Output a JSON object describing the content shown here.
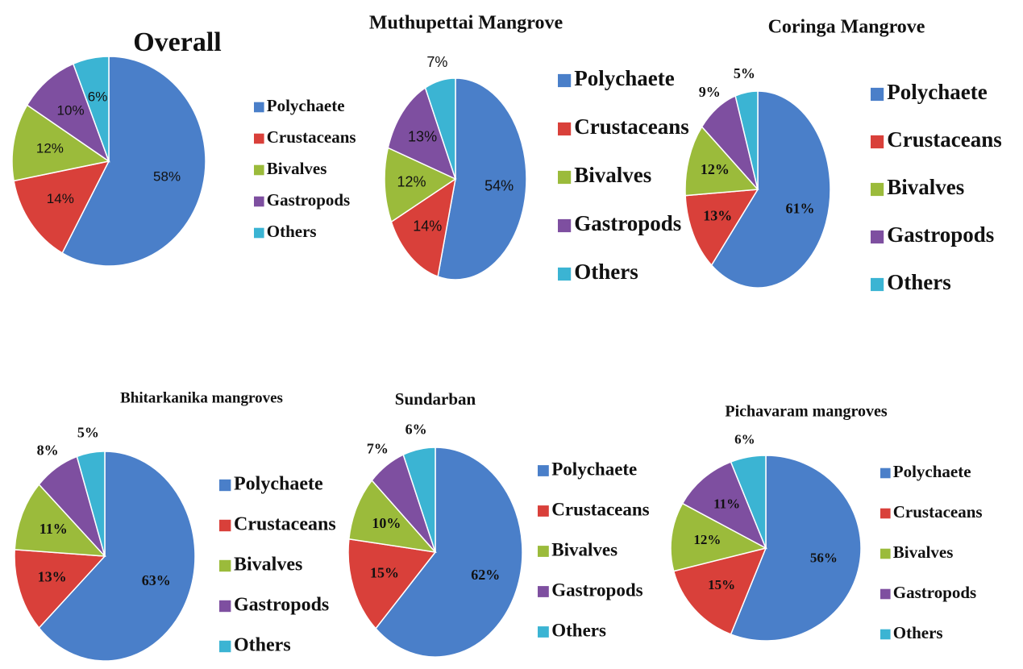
{
  "chart_data": [
    {
      "type": "pie",
      "title": "Overall",
      "categories": [
        "Polychaete",
        "Crustaceans",
        "Bivalves",
        "Gastropods",
        "Others"
      ],
      "values": [
        58,
        14,
        12,
        10,
        6
      ],
      "value_labels": [
        "58%",
        "14%",
        "12%",
        "10%",
        "6%"
      ],
      "colors": [
        "#4a7fc9",
        "#d9403a",
        "#9bbb3b",
        "#7e4fa0",
        "#3bb4d3"
      ]
    },
    {
      "type": "pie",
      "title": "Muthupettai Mangrove",
      "categories": [
        "Polychaete",
        "Crustaceans",
        "Bivalves",
        "Gastropods",
        "Others"
      ],
      "values": [
        54,
        14,
        12,
        13,
        7
      ],
      "value_labels": [
        "54%",
        "14%",
        "12%",
        "13%",
        "7%"
      ],
      "colors": [
        "#4a7fc9",
        "#d9403a",
        "#9bbb3b",
        "#7e4fa0",
        "#3bb4d3"
      ]
    },
    {
      "type": "pie",
      "title": "Coringa Mangrove",
      "categories": [
        "Polychaete",
        "Crustaceans",
        "Bivalves",
        "Gastropods",
        "Others"
      ],
      "values": [
        61,
        13,
        12,
        9,
        5
      ],
      "value_labels": [
        "61%",
        "13%",
        "12%",
        "9%",
        "5%"
      ],
      "colors": [
        "#4a7fc9",
        "#d9403a",
        "#9bbb3b",
        "#7e4fa0",
        "#3bb4d3"
      ]
    },
    {
      "type": "pie",
      "title": "Bhitarkanika mangroves",
      "categories": [
        "Polychaete",
        "Crustaceans",
        "Bivalves",
        "Gastropods",
        "Others"
      ],
      "values": [
        63,
        13,
        11,
        8,
        5
      ],
      "value_labels": [
        "63%",
        "13%",
        "11%",
        "8%",
        "5%"
      ],
      "colors": [
        "#4a7fc9",
        "#d9403a",
        "#9bbb3b",
        "#7e4fa0",
        "#3bb4d3"
      ]
    },
    {
      "type": "pie",
      "title": "Sundarban",
      "categories": [
        "Polychaete",
        "Crustaceans",
        "Bivalves",
        "Gastropods",
        "Others"
      ],
      "values": [
        62,
        15,
        10,
        7,
        6
      ],
      "value_labels": [
        "62%",
        "15%",
        "10%",
        "7%",
        "6%"
      ],
      "colors": [
        "#4a7fc9",
        "#d9403a",
        "#9bbb3b",
        "#7e4fa0",
        "#3bb4d3"
      ]
    },
    {
      "type": "pie",
      "title": "Pichavaram mangroves",
      "categories": [
        "Polychaete",
        "Crustaceans",
        "Bivalves",
        "Gastropods",
        "Others"
      ],
      "values": [
        56,
        15,
        12,
        11,
        6
      ],
      "value_labels": [
        "56%",
        "15%",
        "12%",
        "11%",
        "6%"
      ],
      "colors": [
        "#4a7fc9",
        "#d9403a",
        "#9bbb3b",
        "#7e4fa0",
        "#3bb4d3"
      ]
    }
  ]
}
